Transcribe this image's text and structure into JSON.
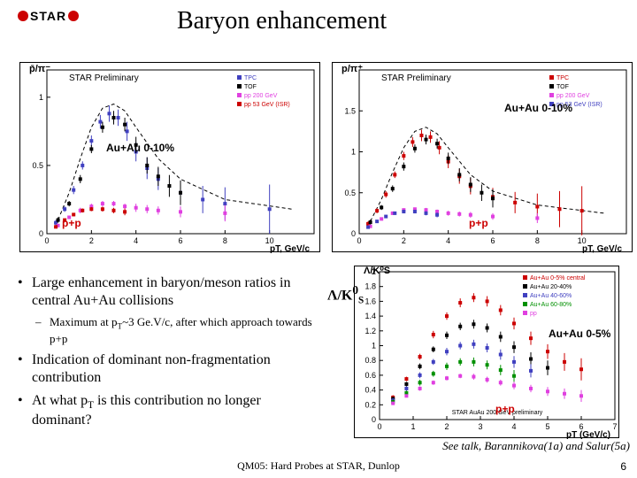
{
  "logo_text": "STAR",
  "title": "Baryon enhancement",
  "chart_left": {
    "type": "scatter",
    "ylabel": "p̄/π⁻",
    "xlabel": "pT, GeV/c",
    "xlim": [
      0,
      12
    ],
    "ylim": [
      0,
      1.2
    ],
    "xticks": [
      0,
      2,
      4,
      6,
      8,
      10
    ],
    "yticks": [
      0,
      0.5,
      1
    ],
    "preliminary_text": "STAR Preliminary",
    "legend": [
      {
        "label": "TPC",
        "color": "#4040c0",
        "marker": "square"
      },
      {
        "label": "TOF",
        "color": "#000000",
        "marker": "circle"
      },
      {
        "label": "pp 200 GeV",
        "color": "#e040e0",
        "marker": "triangle-down"
      },
      {
        "label": "pp 53 GeV (ISR)",
        "color": "#cc0000",
        "marker": "triangle-up"
      }
    ],
    "annotation_auau": "Au+Au 0-10%",
    "annotation_pp": "p+p",
    "series_auau": {
      "x": [
        0.4,
        0.8,
        1.2,
        1.6,
        2.0,
        2.4,
        2.8,
        3.2,
        3.6,
        4.0,
        4.5,
        5.0,
        6.0,
        7.0,
        8.0,
        10.0
      ],
      "y": [
        0.08,
        0.18,
        0.32,
        0.5,
        0.68,
        0.82,
        0.88,
        0.85,
        0.75,
        0.6,
        0.48,
        0.4,
        0.3,
        0.25,
        0.22,
        0.18
      ],
      "err": [
        0.02,
        0.02,
        0.03,
        0.03,
        0.04,
        0.05,
        0.06,
        0.06,
        0.07,
        0.07,
        0.08,
        0.08,
        0.09,
        0.1,
        0.12,
        0.18
      ],
      "color": "#4040c0"
    },
    "series_tof": {
      "x": [
        0.5,
        1.0,
        1.5,
        2.0,
        2.5,
        3.0,
        3.5,
        4.0,
        4.5,
        5.0,
        5.5,
        6.0
      ],
      "y": [
        0.1,
        0.22,
        0.4,
        0.62,
        0.78,
        0.85,
        0.8,
        0.65,
        0.5,
        0.42,
        0.35,
        0.3
      ],
      "err": [
        0.02,
        0.02,
        0.03,
        0.03,
        0.04,
        0.05,
        0.05,
        0.06,
        0.06,
        0.07,
        0.08,
        0.09
      ],
      "color": "#000000"
    },
    "series_pp": {
      "x": [
        0.5,
        1.0,
        1.5,
        2.0,
        2.5,
        3.0,
        3.5,
        4.0,
        4.5,
        5.0,
        6.0,
        8.0
      ],
      "y": [
        0.06,
        0.12,
        0.17,
        0.2,
        0.22,
        0.22,
        0.2,
        0.19,
        0.18,
        0.17,
        0.16,
        0.15
      ],
      "err": [
        0.01,
        0.01,
        0.02,
        0.02,
        0.02,
        0.02,
        0.02,
        0.03,
        0.03,
        0.03,
        0.04,
        0.06
      ],
      "color": "#e040e0"
    },
    "series_isr": {
      "x": [
        0.4,
        0.8,
        1.2,
        1.6,
        2.0,
        2.5,
        3.0,
        3.5
      ],
      "y": [
        0.05,
        0.1,
        0.14,
        0.17,
        0.18,
        0.18,
        0.17,
        0.16
      ],
      "err": [
        0.008,
        0.01,
        0.012,
        0.015,
        0.015,
        0.018,
        0.02,
        0.025
      ],
      "color": "#cc0000"
    },
    "band_curve": {
      "x": [
        0.5,
        1,
        1.5,
        2,
        2.5,
        3,
        3.5,
        4,
        5,
        6,
        8,
        11
      ],
      "y": [
        0.1,
        0.3,
        0.55,
        0.78,
        0.92,
        0.95,
        0.9,
        0.78,
        0.55,
        0.4,
        0.25,
        0.18
      ],
      "color": "#000000"
    }
  },
  "chart_right": {
    "type": "scatter",
    "ylabel": "p/π⁺",
    "xlabel": "pT, GeV/c",
    "xlim": [
      0,
      12
    ],
    "ylim": [
      0,
      2.0
    ],
    "xticks": [
      0,
      2,
      4,
      6,
      8,
      10
    ],
    "yticks": [
      0,
      0.5,
      1,
      1.5
    ],
    "preliminary_text": "STAR Preliminary",
    "legend": [
      {
        "label": "TPC",
        "color": "#cc0000",
        "marker": "square"
      },
      {
        "label": "TOF",
        "color": "#000000",
        "marker": "circle"
      },
      {
        "label": "pp 200 GeV",
        "color": "#e040e0",
        "marker": "triangle-down"
      },
      {
        "label": "pp 53 GeV (ISR)",
        "color": "#4040c0",
        "marker": "triangle-up"
      }
    ],
    "annotation_auau": "Au+Au 0-10%",
    "annotation_pp": "p+p",
    "series_auau": {
      "x": [
        0.4,
        0.8,
        1.2,
        1.6,
        2.0,
        2.4,
        2.8,
        3.2,
        3.6,
        4.0,
        4.5,
        5.0,
        6.0,
        7.0,
        8.0,
        9.0,
        10.0
      ],
      "y": [
        0.12,
        0.28,
        0.48,
        0.72,
        0.95,
        1.12,
        1.2,
        1.18,
        1.05,
        0.88,
        0.7,
        0.58,
        0.45,
        0.38,
        0.33,
        0.3,
        0.28
      ],
      "err": [
        0.03,
        0.03,
        0.04,
        0.04,
        0.05,
        0.06,
        0.07,
        0.07,
        0.08,
        0.08,
        0.09,
        0.1,
        0.11,
        0.13,
        0.16,
        0.22,
        0.3
      ],
      "color": "#cc0000"
    },
    "series_tof": {
      "x": [
        0.5,
        1.0,
        1.5,
        2.0,
        2.5,
        3.0,
        3.5,
        4.0,
        4.5,
        5.0,
        5.5,
        6.0
      ],
      "y": [
        0.14,
        0.32,
        0.55,
        0.82,
        1.04,
        1.15,
        1.1,
        0.92,
        0.72,
        0.6,
        0.5,
        0.43
      ],
      "err": [
        0.03,
        0.03,
        0.04,
        0.05,
        0.05,
        0.06,
        0.06,
        0.07,
        0.08,
        0.09,
        0.1,
        0.11
      ],
      "color": "#000000"
    },
    "series_pp": {
      "x": [
        0.5,
        1.0,
        1.5,
        2.0,
        2.5,
        3.0,
        3.5,
        4.0,
        4.5,
        5.0,
        6.0,
        8.0
      ],
      "y": [
        0.09,
        0.18,
        0.25,
        0.29,
        0.3,
        0.29,
        0.27,
        0.25,
        0.24,
        0.23,
        0.21,
        0.19
      ],
      "err": [
        0.01,
        0.015,
        0.02,
        0.02,
        0.02,
        0.025,
        0.025,
        0.03,
        0.03,
        0.035,
        0.04,
        0.06
      ],
      "color": "#e040e0"
    },
    "series_isr": {
      "x": [
        0.4,
        0.8,
        1.2,
        1.6,
        2.0,
        2.5,
        3.0,
        3.5
      ],
      "y": [
        0.08,
        0.15,
        0.21,
        0.25,
        0.27,
        0.27,
        0.25,
        0.23
      ],
      "err": [
        0.01,
        0.012,
        0.015,
        0.018,
        0.02,
        0.022,
        0.025,
        0.03
      ],
      "color": "#4040c0"
    },
    "band_curve": {
      "x": [
        0.5,
        1,
        1.5,
        2,
        2.5,
        3,
        3.5,
        4,
        5,
        6,
        8,
        11
      ],
      "y": [
        0.15,
        0.42,
        0.75,
        1.05,
        1.25,
        1.3,
        1.22,
        1.05,
        0.72,
        0.52,
        0.35,
        0.25
      ],
      "color": "#000000"
    }
  },
  "chart_bottom": {
    "type": "scatter",
    "ylabel": "Λ/K⁰S",
    "xlabel": "pT (GeV/c)",
    "xlim": [
      0,
      7
    ],
    "ylim": [
      0,
      2.0
    ],
    "xticks": [
      0,
      1,
      2,
      3,
      4,
      5,
      6,
      7
    ],
    "yticks": [
      0,
      0.2,
      0.4,
      0.6,
      0.8,
      1,
      1.2,
      1.4,
      1.6,
      1.8,
      2
    ],
    "legend": [
      {
        "label": "Au+Au 0-5% central",
        "color": "#cc0000",
        "marker": "circle"
      },
      {
        "label": "Au+Au 20-40%",
        "color": "#000000",
        "marker": "square"
      },
      {
        "label": "Au+Au 40-60%",
        "color": "#4040c0",
        "marker": "triangle-up"
      },
      {
        "label": "Au+Au 60-80%",
        "color": "#009000",
        "marker": "triangle-down"
      },
      {
        "label": "pp",
        "color": "#e040e0",
        "marker": "open-circle"
      }
    ],
    "footer_text": "STAR AuAu 200 GeV preliminary",
    "annotation_auau": "Au+Au 0-5%",
    "annotation_pp": "p+p",
    "series_05": {
      "x": [
        0.4,
        0.8,
        1.2,
        1.6,
        2.0,
        2.4,
        2.8,
        3.2,
        3.6,
        4.0,
        4.5,
        5.0,
        5.5,
        6.0
      ],
      "y": [
        0.3,
        0.55,
        0.85,
        1.15,
        1.4,
        1.58,
        1.65,
        1.6,
        1.48,
        1.3,
        1.1,
        0.92,
        0.78,
        0.68
      ],
      "err": [
        0.03,
        0.03,
        0.04,
        0.05,
        0.05,
        0.06,
        0.06,
        0.07,
        0.07,
        0.08,
        0.09,
        0.1,
        0.12,
        0.15
      ],
      "color": "#cc0000"
    },
    "series_2040": {
      "x": [
        0.4,
        0.8,
        1.2,
        1.6,
        2.0,
        2.4,
        2.8,
        3.2,
        3.6,
        4.0,
        4.5,
        5.0
      ],
      "y": [
        0.28,
        0.48,
        0.72,
        0.95,
        1.14,
        1.26,
        1.29,
        1.24,
        1.12,
        0.98,
        0.82,
        0.7
      ],
      "err": [
        0.03,
        0.03,
        0.04,
        0.04,
        0.05,
        0.05,
        0.06,
        0.06,
        0.07,
        0.08,
        0.09,
        0.1
      ],
      "color": "#000000"
    },
    "series_4060": {
      "x": [
        0.4,
        0.8,
        1.2,
        1.6,
        2.0,
        2.4,
        2.8,
        3.2,
        3.6,
        4.0,
        4.5
      ],
      "y": [
        0.26,
        0.42,
        0.6,
        0.78,
        0.92,
        1.0,
        1.02,
        0.97,
        0.88,
        0.78,
        0.66
      ],
      "err": [
        0.03,
        0.03,
        0.04,
        0.04,
        0.05,
        0.05,
        0.06,
        0.06,
        0.07,
        0.08,
        0.09
      ],
      "color": "#4040c0"
    },
    "series_6080": {
      "x": [
        0.4,
        0.8,
        1.2,
        1.6,
        2.0,
        2.4,
        2.8,
        3.2,
        3.6,
        4.0
      ],
      "y": [
        0.24,
        0.36,
        0.5,
        0.62,
        0.72,
        0.78,
        0.78,
        0.74,
        0.67,
        0.59
      ],
      "err": [
        0.03,
        0.03,
        0.04,
        0.04,
        0.05,
        0.05,
        0.06,
        0.06,
        0.07,
        0.08
      ],
      "color": "#009000"
    },
    "series_pp": {
      "x": [
        0.4,
        0.8,
        1.2,
        1.6,
        2.0,
        2.4,
        2.8,
        3.2,
        3.6,
        4.0,
        4.5,
        5.0,
        5.5,
        6.0
      ],
      "y": [
        0.22,
        0.32,
        0.42,
        0.5,
        0.56,
        0.59,
        0.58,
        0.54,
        0.5,
        0.46,
        0.42,
        0.38,
        0.35,
        0.32
      ],
      "err": [
        0.02,
        0.02,
        0.03,
        0.03,
        0.03,
        0.03,
        0.04,
        0.04,
        0.04,
        0.05,
        0.05,
        0.06,
        0.07,
        0.08
      ],
      "color": "#e040e0"
    }
  },
  "bullets": {
    "b1": "Large enhancement in baryon/meson ratios in central Au+Au collisions",
    "b1a": "Maximum at pT~3 Ge.V/c, after which approach towards p+p",
    "b2": "Indication of dominant non-fragmentation contribution",
    "b3": "At what pT is this contribution no longer dominant?"
  },
  "see_talk": "See talk, Barannikova(1a) and Salur(5a)",
  "footer": "QM05: Hard Probes at STAR, Dunlop",
  "page_number": "6"
}
